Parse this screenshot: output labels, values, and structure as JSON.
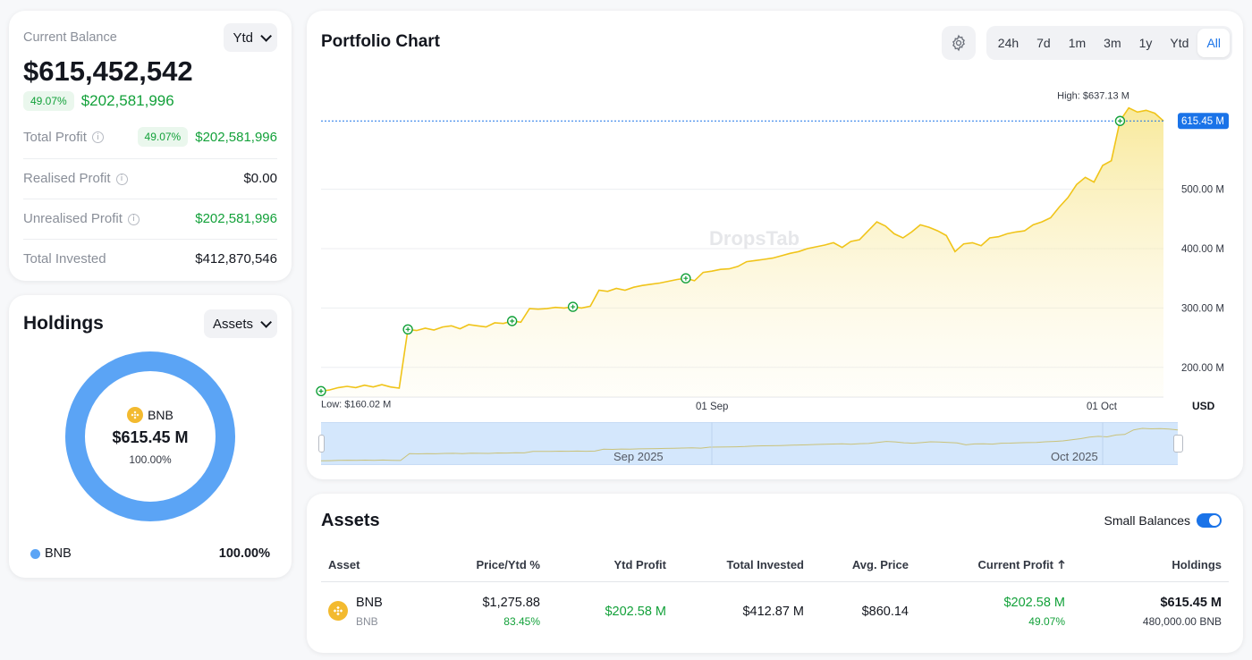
{
  "balance": {
    "label": "Current Balance",
    "period": "Ytd",
    "value": "$615,452,542",
    "change_pct": "49.07%",
    "change_value": "$202,581,996",
    "rows": [
      {
        "label": "Total Profit",
        "pct": "49.07%",
        "value": "$202,581,996"
      },
      {
        "label": "Realised Profit",
        "value": "$0.00"
      },
      {
        "label": "Unrealised Profit",
        "value": "$202,581,996"
      },
      {
        "label": "Total Invested",
        "value": "$412,870,546"
      }
    ]
  },
  "holdings": {
    "title": "Holdings",
    "filter": "Assets",
    "donut_asset": "BNB",
    "donut_value": "$615.45 M",
    "donut_pct": "100.00%",
    "legend": [
      {
        "name": "BNB",
        "pct": "100.00%",
        "color": "#5ba4f5"
      }
    ]
  },
  "chart": {
    "title": "Portfolio Chart",
    "ranges": [
      "24h",
      "7d",
      "1m",
      "3m",
      "1y",
      "Ytd",
      "All"
    ],
    "active_range": "All",
    "high_label": "High: $637.13 M",
    "low_label": "Low: $160.02 M",
    "current_label": "615.45 M",
    "y_ticks": [
      "500.00 M",
      "400.00 M",
      "300.00 M",
      "200.00 M"
    ],
    "x_ticks": [
      "01 Sep",
      "01 Oct"
    ],
    "currency": "USD",
    "nav_labels": [
      "Sep 2025",
      "Oct 2025"
    ],
    "watermark": "DropsTab"
  },
  "chart_data": {
    "type": "area",
    "ylabel": "USD",
    "ylim": [
      160,
      637.13
    ],
    "x_ticks": [
      "01 Sep",
      "01 Oct"
    ],
    "series": [
      {
        "values": [
          160,
          162,
          166,
          168,
          166,
          170,
          167,
          171,
          167,
          165,
          264,
          262,
          266,
          263,
          268,
          270,
          265,
          272,
          270,
          268,
          275,
          274,
          278,
          276,
          299,
          298,
          299,
          301,
          300,
          302,
          300,
          303,
          330,
          328,
          333,
          330,
          335,
          338,
          340,
          342,
          345,
          348,
          350,
          346,
          360,
          362,
          365,
          366,
          370,
          378,
          380,
          382,
          384,
          388,
          392,
          395,
          400,
          403,
          406,
          410,
          402,
          412,
          415,
          430,
          445,
          438,
          425,
          418,
          428,
          440,
          436,
          430,
          422,
          395,
          408,
          410,
          405,
          418,
          420,
          425,
          428,
          430,
          440,
          445,
          452,
          470,
          486,
          508,
          520,
          512,
          540,
          548,
          615,
          637,
          630,
          633,
          628,
          615
        ]
      }
    ],
    "buy_markers": [
      0,
      10,
      22,
      29,
      42,
      92
    ]
  },
  "assets": {
    "title": "Assets",
    "small_balances_label": "Small Balances",
    "columns": [
      "Asset",
      "Price/Ytd %",
      "Ytd Profit",
      "Total Invested",
      "Avg. Price",
      "Current Profit",
      "Holdings"
    ],
    "rows": [
      {
        "name": "BNB",
        "ticker": "BNB",
        "price": "$1,275.88",
        "ytd_pct": "83.45%",
        "ytd_profit": "$202.58 M",
        "total_invested": "$412.87 M",
        "avg_price": "$860.14",
        "current_profit": "$202.58 M",
        "current_profit_pct": "49.07%",
        "holdings_value": "$615.45 M",
        "holdings_amount": "480,000.00 BNB"
      }
    ]
  }
}
